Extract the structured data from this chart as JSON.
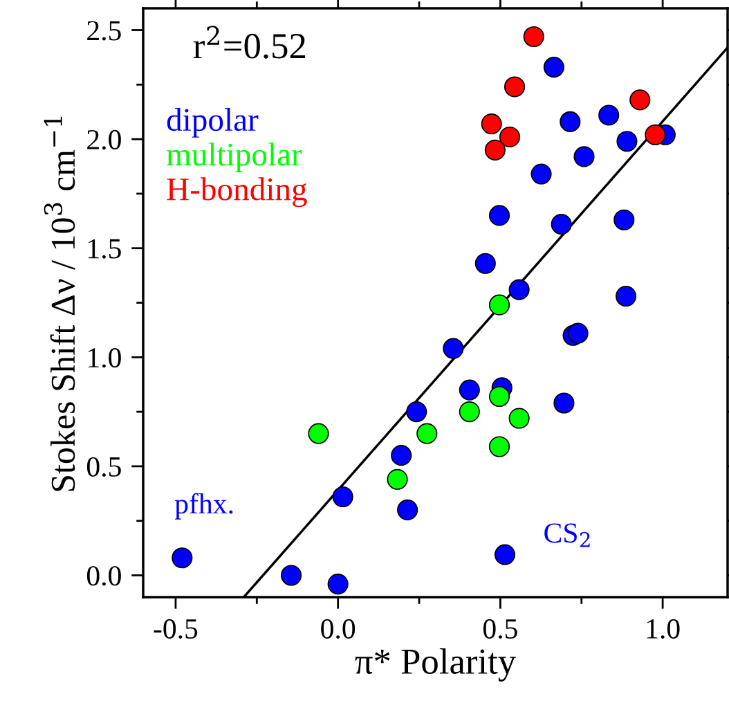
{
  "chart_data": {
    "type": "scatter",
    "xlabel": "π* Polarity",
    "ylabel": "Stokes Shift Δν / 10$^{3}$ cm$^{−1}$",
    "xlim": [
      -0.6,
      1.2
    ],
    "ylim": [
      -0.1,
      2.6
    ],
    "xticks": [
      -0.5,
      {
        "value": 0,
        "label": "0.0"
      },
      0.5,
      {
        "value": 1,
        "label": "1.0"
      }
    ],
    "yticks": [
      {
        "value": 0,
        "label": "0.0"
      },
      0.5,
      {
        "value": 1,
        "label": "1.0"
      },
      1.5,
      {
        "value": 2,
        "label": "2.0"
      },
      2.5
    ],
    "marker": "circle",
    "grid": false,
    "legend": "top left",
    "annotations": [
      "r$^{2}$=0.52",
      {
        "text": "pfhx.",
        "x": -0.48,
        "y": 0.08
      },
      {
        "text": "CS$_{2}$",
        "x": 0.514,
        "y": 0.095
      }
    ],
    "series": [
      {
        "name": "dipolar",
        "color": "#0000ff",
        "x": [
          -0.48,
          -0.144,
          0.0,
          0.015,
          0.195,
          0.214,
          0.242,
          0.355,
          0.405,
          0.454,
          0.497,
          0.505,
          0.514,
          0.558,
          0.626,
          0.665,
          0.688,
          0.696,
          0.715,
          0.724,
          0.739,
          0.758,
          0.834,
          0.881,
          0.89,
          0.887,
          1.008
        ],
        "values": [
          0.08,
          0.0,
          -0.04,
          0.36,
          0.55,
          0.3,
          0.75,
          1.04,
          0.85,
          1.43,
          1.65,
          0.86,
          0.095,
          1.31,
          1.84,
          2.33,
          1.61,
          0.79,
          2.08,
          1.1,
          1.11,
          1.92,
          2.11,
          1.63,
          1.99,
          1.28,
          2.02
        ]
      },
      {
        "name": "multipolar",
        "color": "#00ff00",
        "x": [
          -0.06,
          0.183,
          0.274,
          0.405,
          0.497,
          0.497,
          0.497,
          0.558
        ],
        "values": [
          0.65,
          0.44,
          0.65,
          0.75,
          1.24,
          0.82,
          0.59,
          0.72
        ]
      },
      {
        "name": "H-bonding",
        "color": "#ff0000",
        "x": [
          0.603,
          0.544,
          0.473,
          0.484,
          0.529,
          0.93,
          0.977
        ],
        "values": [
          2.47,
          2.24,
          2.07,
          1.95,
          2.01,
          2.18,
          2.02
        ]
      },
      {
        "type": "line",
        "color": "#000000",
        "marker": "none",
        "line_style": "solid",
        "x": [
          -0.29,
          1.2
        ],
        "values": [
          -0.1,
          2.42
        ]
      }
    ]
  }
}
